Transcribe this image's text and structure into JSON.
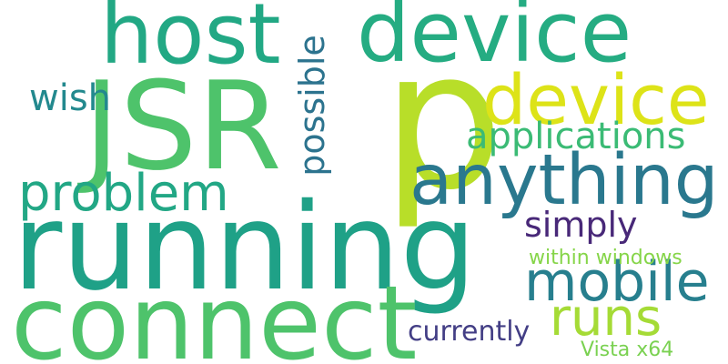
{
  "word_cloud": {
    "words": [
      {
        "key": "running",
        "text": "running",
        "color": "#1fa187"
      },
      {
        "key": "connect",
        "text": "connect",
        "color": "#4ec36b"
      },
      {
        "key": "p",
        "text": "p",
        "color": "#b8de29"
      },
      {
        "key": "jsr",
        "text": "JSR",
        "color": "#4ec36b"
      },
      {
        "key": "host",
        "text": "host",
        "color": "#22a884"
      },
      {
        "key": "device_top",
        "text": "device",
        "color": "#25ac82"
      },
      {
        "key": "device_yellow",
        "text": "device",
        "color": "#dde318"
      },
      {
        "key": "anything",
        "text": "anything",
        "color": "#2a788e"
      },
      {
        "key": "problem",
        "text": "problem",
        "color": "#22a785"
      },
      {
        "key": "mobile",
        "text": "mobile",
        "color": "#277f8e"
      },
      {
        "key": "runs",
        "text": "runs",
        "color": "#a5db36"
      },
      {
        "key": "applications",
        "text": "applications",
        "color": "#3bbb75"
      },
      {
        "key": "possible",
        "text": "possible",
        "color": "#2c738e"
      },
      {
        "key": "wish",
        "text": "wish",
        "color": "#23898e"
      },
      {
        "key": "simply",
        "text": "simply",
        "color": "#482878"
      },
      {
        "key": "within_windows",
        "text": "within windows",
        "color": "#86d549"
      },
      {
        "key": "currently",
        "text": "currently",
        "color": "#433e85"
      },
      {
        "key": "vista_x64",
        "text": "Vista x64",
        "color": "#7ad151"
      }
    ]
  }
}
